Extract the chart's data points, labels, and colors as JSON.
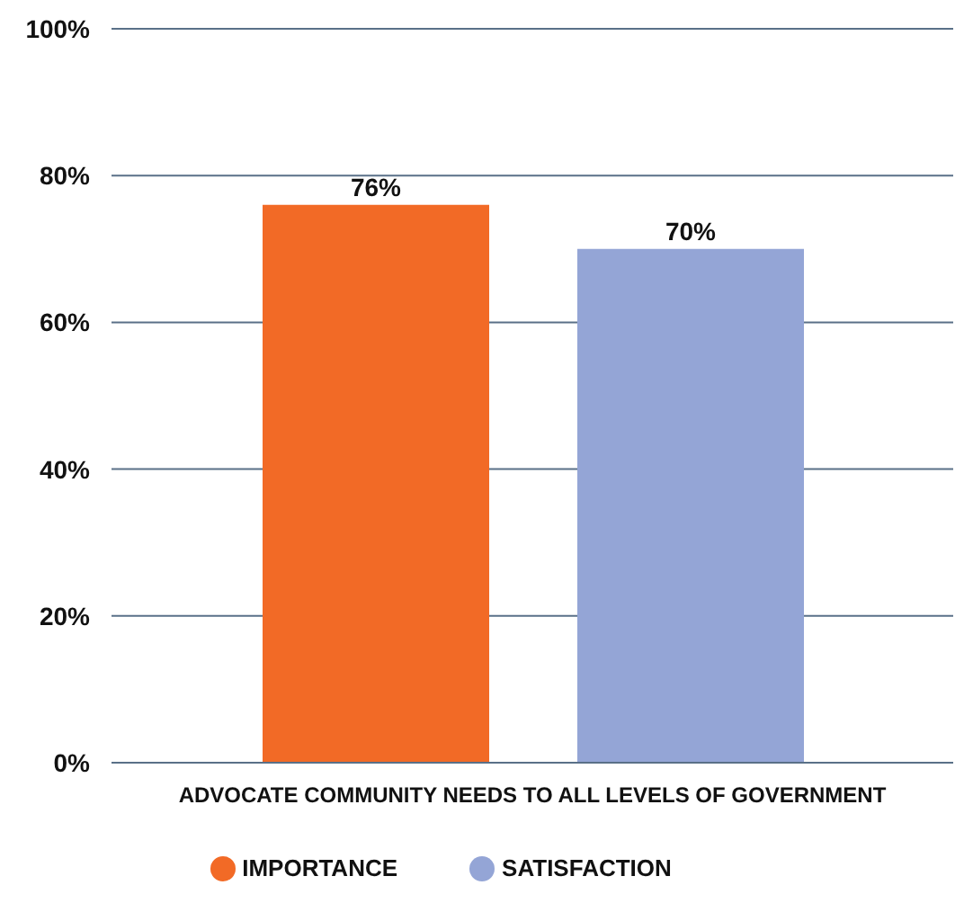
{
  "chart_data": {
    "type": "bar",
    "categories": [
      "ADVOCATE COMMUNITY NEEDS TO ALL LEVELS OF GOVERNMENT"
    ],
    "series": [
      {
        "name": "IMPORTANCE",
        "color": "#f26a26",
        "values": [
          76
        ],
        "value_labels": [
          "76%"
        ]
      },
      {
        "name": "SATISFACTION",
        "color": "#94a5d6",
        "values": [
          70
        ],
        "value_labels": [
          "70%"
        ]
      }
    ],
    "ylim": [
      0,
      100
    ],
    "yticks": [
      {
        "value": 0,
        "label": "0%"
      },
      {
        "value": 20,
        "label": "20%"
      },
      {
        "value": 40,
        "label": "40%"
      },
      {
        "value": 60,
        "label": "60%"
      },
      {
        "value": 80,
        "label": "80%"
      },
      {
        "value": 100,
        "label": "100%"
      }
    ],
    "grid": "y",
    "legend": "bottom"
  }
}
